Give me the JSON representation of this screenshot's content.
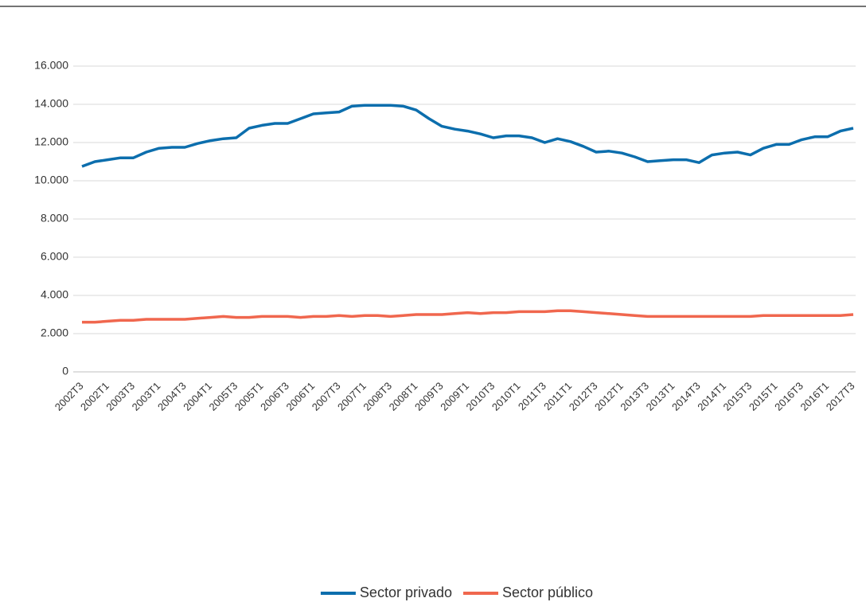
{
  "chart_data": {
    "type": "line",
    "categories": [
      "2002T3",
      null,
      "2002T1",
      null,
      "2003T3",
      null,
      "2003T1",
      null,
      "2004T3",
      null,
      "2004T1",
      null,
      "2005T3",
      null,
      "2005T1",
      null,
      "2006T3",
      null,
      "2006T1",
      null,
      "2007T3",
      null,
      "2007T1",
      null,
      "2008T3",
      null,
      "2008T1",
      null,
      "2009T3",
      null,
      "2009T1",
      null,
      "2010T3",
      null,
      "2010T1",
      null,
      "2011T3",
      null,
      "2011T1",
      null,
      "2012T3",
      null,
      "2012T1",
      null,
      "2013T3",
      null,
      "2013T1",
      null,
      "2014T3",
      null,
      "2014T1",
      null,
      "2015T3",
      null,
      "2015T1",
      null,
      "2016T3",
      null,
      "2016T1",
      null,
      "2017T3"
    ],
    "series": [
      {
        "name": "Sector privado",
        "color": "#0c6ead",
        "values": [
          10750,
          11000,
          11100,
          11200,
          11200,
          11500,
          11700,
          11750,
          11750,
          11950,
          12100,
          12200,
          12250,
          12750,
          12900,
          13000,
          13000,
          13250,
          13500,
          13550,
          13600,
          13900,
          13950,
          13950,
          13950,
          13900,
          13700,
          13250,
          12850,
          12700,
          12600,
          12450,
          12250,
          12350,
          12350,
          12250,
          12000,
          12200,
          12050,
          11800,
          11500,
          11550,
          11450,
          11250,
          11000,
          11050,
          11100,
          11100,
          10950,
          11350,
          11450,
          11500,
          11350,
          11700,
          11900,
          11900,
          12150,
          12300,
          12300,
          12600,
          12750
        ]
      },
      {
        "name": "Sector público",
        "color": "#f0674e",
        "values": [
          2600,
          2600,
          2650,
          2700,
          2700,
          2750,
          2750,
          2750,
          2750,
          2800,
          2850,
          2900,
          2850,
          2850,
          2900,
          2900,
          2900,
          2850,
          2900,
          2900,
          2950,
          2900,
          2950,
          2950,
          2900,
          2950,
          3000,
          3000,
          3000,
          3050,
          3100,
          3050,
          3100,
          3100,
          3150,
          3150,
          3150,
          3200,
          3200,
          3150,
          3100,
          3050,
          3000,
          2950,
          2900,
          2900,
          2900,
          2900,
          2900,
          2900,
          2900,
          2900,
          2900,
          2950,
          2950,
          2950,
          2950,
          2950,
          2950,
          2950,
          3000
        ]
      }
    ],
    "ylim": [
      0,
      16000
    ],
    "yticks": [
      0,
      {
        "value": 2000,
        "label": "2.000"
      },
      {
        "value": 4000,
        "label": "4.000"
      },
      {
        "value": 6000,
        "label": "6.000"
      },
      {
        "value": 8000,
        "label": "8.000"
      },
      {
        "value": 10000,
        "label": "10.000"
      },
      {
        "value": 12000,
        "label": "12.000"
      },
      {
        "value": 14000,
        "label": "14.000"
      },
      {
        "value": 16000,
        "label": "16.000"
      }
    ],
    "grid": true,
    "legend": "bottom"
  }
}
